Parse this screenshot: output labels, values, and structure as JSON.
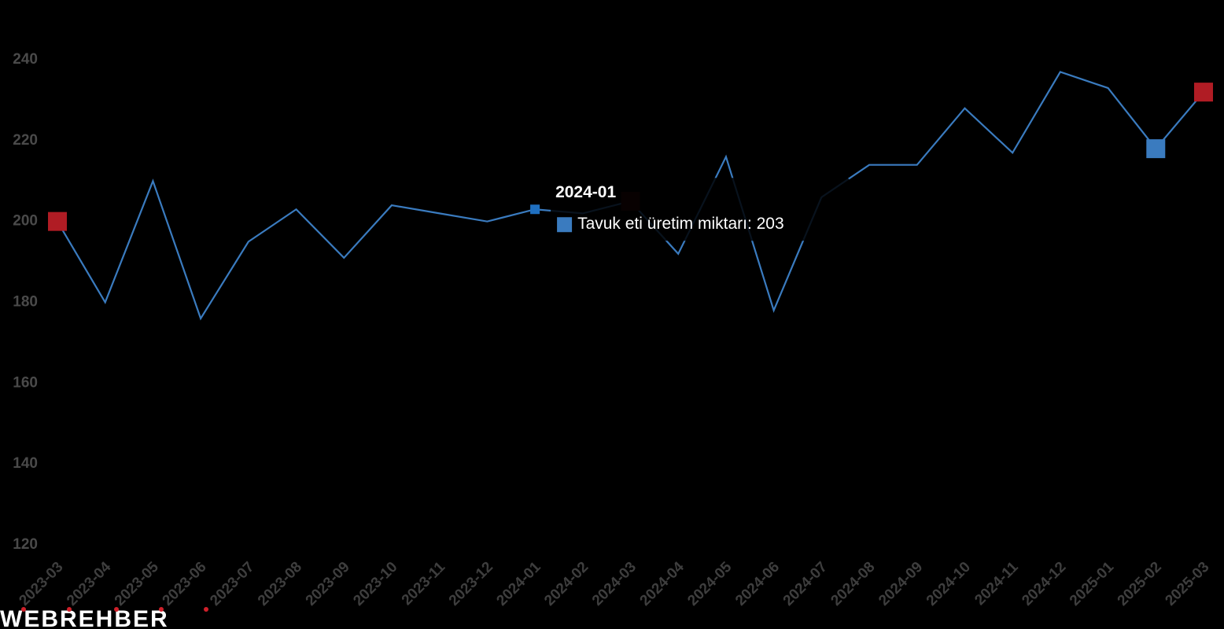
{
  "chart_data": {
    "type": "line",
    "categories": [
      "2023-03",
      "2023-04",
      "2023-05",
      "2023-06",
      "2023-07",
      "2023-08",
      "2023-09",
      "2023-10",
      "2023-11",
      "2023-12",
      "2024-01",
      "2024-02",
      "2024-03",
      "2024-04",
      "2024-05",
      "2024-06",
      "2024-07",
      "2024-08",
      "2024-09",
      "2024-10",
      "2024-11",
      "2024-12",
      "2025-01",
      "2025-02",
      "2025-03"
    ],
    "series": [
      {
        "name": "Tavuk eti üretim miktarı",
        "color": "#3a7bbf",
        "values": [
          200,
          180,
          210,
          176,
          195,
          203,
          191,
          204,
          202,
          200,
          203,
          202,
          205,
          192,
          216,
          178,
          206,
          214,
          214,
          228,
          217,
          237,
          233,
          218,
          232
        ]
      }
    ],
    "ylim": [
      120,
      250
    ],
    "yticks": [
      120,
      140,
      160,
      180,
      200,
      220,
      240
    ],
    "grid": false,
    "markers": [
      {
        "index": 0,
        "color": "#b01c24"
      },
      {
        "index": 12,
        "color": "#3a0a0c"
      },
      {
        "index": 23,
        "color": "#3a7bbf"
      },
      {
        "index": 24,
        "color": "#b01c24"
      }
    ],
    "tooltip": {
      "index": 10,
      "title": "2024-01",
      "label": "Tavuk eti üretim miktarı: 203"
    },
    "watermark": "WEBREHBER"
  }
}
